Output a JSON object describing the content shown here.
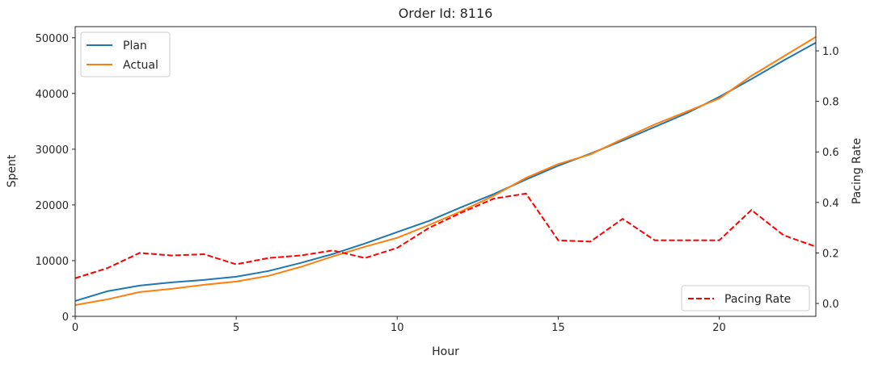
{
  "chart_data": {
    "type": "line",
    "title": "Order Id: 8116",
    "xlabel": "Hour",
    "ylabel": "Spent",
    "y2label": "Pacing Rate",
    "xlim": [
      0,
      23
    ],
    "ylim": [
      0,
      52000
    ],
    "y2lim": [
      -0.051,
      1.096
    ],
    "xticks": [
      0,
      5,
      10,
      15,
      20
    ],
    "yticks": [
      0,
      10000,
      20000,
      30000,
      40000,
      50000
    ],
    "y2ticks": [
      0.0,
      0.2,
      0.4,
      0.6,
      0.8,
      1.0
    ],
    "y2ticklabels": [
      "0.0",
      "0.2",
      "0.4",
      "0.6",
      "0.8",
      "1.0"
    ],
    "grid": false,
    "x": [
      0,
      1,
      2,
      3,
      4,
      5,
      6,
      7,
      8,
      9,
      10,
      11,
      12,
      13,
      14,
      15,
      16,
      17,
      18,
      19,
      20,
      21,
      22,
      23
    ],
    "series": [
      {
        "name": "Plan",
        "axis": "left",
        "color": "#1f77b4",
        "style": "solid",
        "values": [
          2760,
          4510,
          5520,
          6100,
          6540,
          7120,
          8140,
          9590,
          11190,
          13080,
          15120,
          17150,
          19620,
          21950,
          24560,
          27030,
          29210,
          31540,
          34010,
          36480,
          39390,
          42590,
          45930,
          49130
        ]
      },
      {
        "name": "Actual",
        "axis": "left",
        "color": "#ff7f0e",
        "style": "solid",
        "values": [
          2030,
          3050,
          4360,
          4940,
          5670,
          6250,
          7270,
          8870,
          10760,
          12500,
          14100,
          16420,
          18900,
          21660,
          24850,
          27330,
          29070,
          31830,
          34450,
          36770,
          39100,
          43170,
          46660,
          50150
        ]
      },
      {
        "name": "Pacing Rate",
        "axis": "right",
        "color": "#ff0000",
        "style": "dashed",
        "values": [
          0.1,
          0.14,
          0.2,
          0.19,
          0.195,
          0.155,
          0.18,
          0.19,
          0.21,
          0.18,
          0.22,
          0.3,
          0.36,
          0.415,
          0.435,
          0.25,
          0.245,
          0.335,
          0.25,
          0.25,
          0.25,
          0.37,
          0.27,
          0.225
        ]
      }
    ],
    "legend_left": "top-left",
    "legend_right": "bottom-right"
  }
}
